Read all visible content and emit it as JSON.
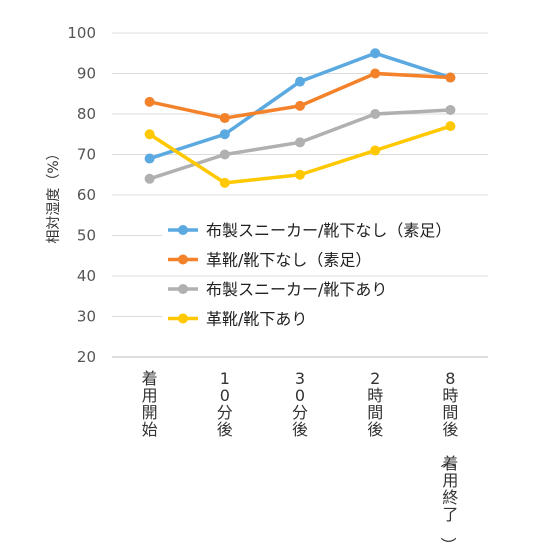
{
  "chart_data": {
    "type": "line",
    "title": "",
    "xlabel": "",
    "ylabel": "相対湿度（%）",
    "ylim": [
      20,
      100
    ],
    "yticks": [
      20,
      30,
      40,
      50,
      60,
      70,
      80,
      90,
      100
    ],
    "grid": true,
    "legend": "center",
    "categories": [
      "着用開始",
      "10分後",
      "30分後",
      "2時間後",
      "8時間後（着用終了）"
    ],
    "series": [
      {
        "name": "布製スニーカー/靴下なし（素足）",
        "color": "#5aa9e0",
        "values": [
          69,
          75,
          88,
          95,
          89
        ]
      },
      {
        "name": "革靴/靴下なし（素足）",
        "color": "#f4822a",
        "values": [
          83,
          79,
          82,
          90,
          89
        ]
      },
      {
        "name": "布製スニーカー/靴下あり",
        "color": "#b0b0b0",
        "values": [
          64,
          70,
          73,
          80,
          81
        ]
      },
      {
        "name": "革靴/靴下あり",
        "color": "#ffc800",
        "values": [
          75,
          63,
          65,
          71,
          77
        ]
      }
    ]
  }
}
